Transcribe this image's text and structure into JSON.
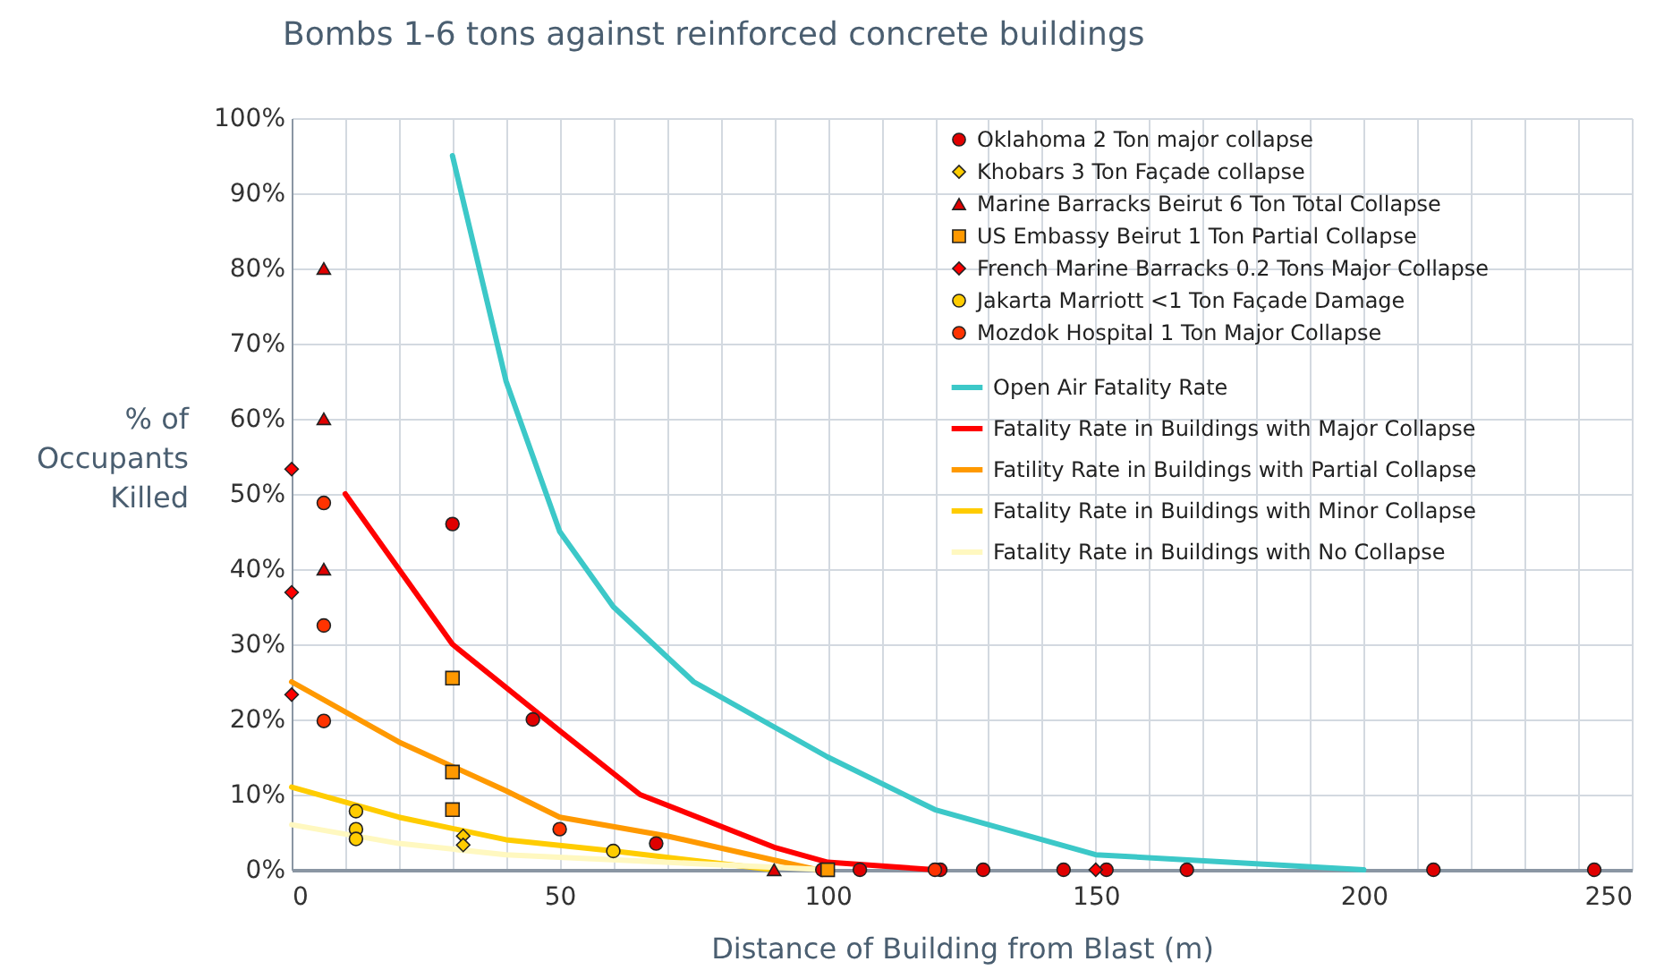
{
  "chart_data": {
    "type": "scatter",
    "title": "Bombs 1-6 tons against reinforced concrete buildings",
    "xlabel": "Distance of Building from Blast (m)",
    "ylabel": "% of Occupants Killed",
    "xlim": [
      0,
      250
    ],
    "xticks": [
      0,
      {
        "value": 10,
        "label": null
      },
      {
        "value": 20,
        "label": null
      },
      {
        "value": 30,
        "label": null
      },
      {
        "value": 40,
        "label": null
      },
      50,
      {
        "value": 60,
        "label": null
      },
      {
        "value": 70,
        "label": null
      },
      {
        "value": 80,
        "label": null
      },
      {
        "value": 90,
        "label": null
      },
      100,
      {
        "value": 110,
        "label": null
      },
      {
        "value": 120,
        "label": null
      },
      {
        "value": 130,
        "label": null
      },
      {
        "value": 140,
        "label": null
      },
      150,
      {
        "value": 160,
        "label": null
      },
      {
        "value": 170,
        "label": null
      },
      {
        "value": 180,
        "label": null
      },
      {
        "value": 190,
        "label": null
      },
      200,
      {
        "value": 210,
        "label": null
      },
      {
        "value": 220,
        "label": null
      },
      {
        "value": 230,
        "label": null
      },
      {
        "value": 240,
        "label": null
      },
      250
    ],
    "ylim": [
      0,
      100
    ],
    "yticks": [
      {
        "value": 0,
        "label": "0%"
      },
      {
        "value": 10,
        "label": "10%"
      },
      {
        "value": 20,
        "label": "20%"
      },
      {
        "value": 30,
        "label": "30%"
      },
      {
        "value": 40,
        "label": "40%"
      },
      {
        "value": 50,
        "label": "50%"
      },
      {
        "value": 60,
        "label": "60%"
      },
      {
        "value": 70,
        "label": "70%"
      },
      {
        "value": 80,
        "label": "80%"
      },
      {
        "value": 90,
        "label": "90%"
      },
      {
        "value": 100,
        "label": "100%"
      }
    ],
    "grid": true,
    "legend": "top right",
    "series": [
      {
        "name": "Oklahoma 2 Ton major collapse",
        "type": "scatter",
        "marker": "circle",
        "color": "#e00000",
        "x": [
          30,
          45,
          68,
          99,
          106,
          121,
          129,
          144,
          152,
          167,
          213,
          243
        ],
        "values": [
          46,
          20,
          3.5,
          0,
          0,
          0,
          0,
          0,
          0,
          0,
          0,
          0
        ]
      },
      {
        "name": "Khobars 3 Ton Façade collapse",
        "type": "scatter",
        "marker": "diamond",
        "color": "#ffcc00",
        "x": [
          32,
          32
        ],
        "values": [
          4.5,
          3.3
        ]
      },
      {
        "name": "Marine Barracks Beirut 6 Ton Total Collapse",
        "type": "scatter",
        "marker": "triangle",
        "color": "#e00000",
        "x": [
          6,
          6,
          6,
          90
        ],
        "values": [
          80,
          60,
          40,
          0
        ]
      },
      {
        "name": "US Embassy Beirut 1 Ton Partial Collapse",
        "type": "scatter",
        "marker": "square",
        "color": "#ff9900",
        "x": [
          30,
          30,
          30,
          100
        ],
        "values": [
          25.5,
          13,
          8,
          0
        ]
      },
      {
        "name": "French Marine Barracks 0.2 Tons Major Collapse",
        "type": "scatter",
        "marker": "diamond",
        "color": "#ff0000",
        "x": [
          0,
          0,
          0,
          150
        ],
        "values": [
          53.3,
          36.9,
          23.3,
          0
        ]
      },
      {
        "name": "Jakarta Marriott <1 Ton Façade Damage",
        "type": "scatter",
        "marker": "circle",
        "color": "#ffcc00",
        "x": [
          12,
          12,
          12,
          60
        ],
        "values": [
          7.8,
          5.4,
          4.1,
          2.5
        ]
      },
      {
        "name": "Mozdok Hospital 1 Ton Major Collapse",
        "type": "scatter",
        "marker": "circle",
        "color": "#ff3300",
        "x": [
          6,
          6,
          6,
          50,
          120
        ],
        "values": [
          48.8,
          32.5,
          19.8,
          5.4,
          0
        ]
      },
      {
        "name": "Open Air Fatality Rate",
        "type": "line",
        "color": "#3cc8c8",
        "x": [
          30,
          40,
          50,
          60,
          75,
          100,
          120,
          150,
          200
        ],
        "values": [
          95,
          65,
          45,
          35,
          25,
          15,
          8,
          2,
          0
        ]
      },
      {
        "name": "Fatality Rate in Buildings with Major Collapse",
        "type": "line",
        "color": "#ff0000",
        "x": [
          10,
          30,
          50,
          65,
          90,
          100,
          120
        ],
        "values": [
          50,
          30,
          18.5,
          10,
          3,
          1,
          0
        ]
      },
      {
        "name": "Fatility Rate in Buildings with Partial Collapse",
        "type": "line",
        "color": "#ff9900",
        "x": [
          0,
          20,
          40,
          50,
          70,
          98
        ],
        "values": [
          25,
          17,
          10.5,
          7,
          4.5,
          0
        ]
      },
      {
        "name": "Fatality Rate in Buildings with Minor Collapse",
        "type": "line",
        "color": "#ffcc00",
        "x": [
          0,
          20,
          40,
          60,
          90
        ],
        "values": [
          11,
          7,
          4,
          2.5,
          0
        ]
      },
      {
        "name": "Fatality Rate in Buildings with No Collapse",
        "type": "line",
        "color": "#fff8c0",
        "x": [
          0,
          20,
          40,
          100
        ],
        "values": [
          6,
          3.5,
          2,
          0
        ]
      }
    ]
  }
}
